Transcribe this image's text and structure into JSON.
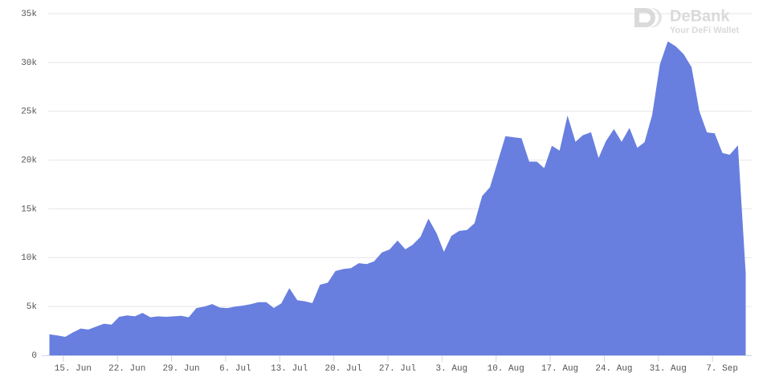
{
  "chart_data": {
    "type": "area",
    "color": "#687fdf",
    "grid": true,
    "watermark": {
      "name": "DeBank",
      "tagline": "Your DeFi Wallet"
    },
    "categories": [
      null,
      null,
      null,
      "15. Jun",
      null,
      null,
      null,
      null,
      null,
      null,
      "22. Jun",
      null,
      null,
      null,
      null,
      null,
      null,
      "29. Jun",
      null,
      null,
      null,
      null,
      null,
      null,
      "6. Jul",
      null,
      null,
      null,
      null,
      null,
      null,
      "13. Jul",
      null,
      null,
      null,
      null,
      null,
      null,
      "20. Jul",
      null,
      null,
      null,
      null,
      null,
      null,
      "27. Jul",
      null,
      null,
      null,
      null,
      null,
      null,
      "3. Aug",
      null,
      null,
      null,
      null,
      null,
      null,
      "10. Aug",
      null,
      null,
      null,
      null,
      null,
      null,
      "17. Aug",
      null,
      null,
      null,
      null,
      null,
      null,
      "24. Aug",
      null,
      null,
      null,
      null,
      null,
      null,
      "31. Aug",
      null,
      null,
      null,
      null,
      null,
      null,
      "7. Sep",
      null,
      null,
      null
    ],
    "values": [
      2100,
      2000,
      1850,
      2300,
      2700,
      2600,
      2900,
      3200,
      3100,
      3900,
      4050,
      3950,
      4300,
      3850,
      3950,
      3900,
      3950,
      4000,
      3850,
      4800,
      4950,
      5200,
      4850,
      4800,
      4950,
      5050,
      5200,
      5400,
      5400,
      4800,
      5300,
      6800,
      5600,
      5500,
      5300,
      7200,
      7400,
      8600,
      8800,
      8900,
      9400,
      9300,
      9600,
      10500,
      10800,
      11700,
      10800,
      11300,
      12100,
      13900,
      12500,
      10500,
      12200,
      12700,
      12800,
      13500,
      16300,
      17200,
      19800,
      22400,
      22300,
      22200,
      19800,
      19800,
      19100,
      21400,
      20900,
      24400,
      21800,
      22500,
      22800,
      20100,
      21900,
      23100,
      21800,
      23200,
      21200,
      21800,
      24600,
      29800,
      32100,
      31600,
      30800,
      29500,
      25000,
      22800,
      22700,
      20700,
      20500,
      21400,
      8400
    ],
    "ylim": [
      0,
      35000
    ],
    "yticks": [
      0,
      {
        "value": 5000,
        "label": "5k"
      },
      {
        "value": 10000,
        "label": "10k"
      },
      {
        "value": 15000,
        "label": "15k"
      },
      {
        "value": 20000,
        "label": "20k"
      },
      {
        "value": 25000,
        "label": "25k"
      },
      {
        "value": 30000,
        "label": "30k"
      },
      {
        "value": 35000,
        "label": "35k"
      }
    ]
  }
}
